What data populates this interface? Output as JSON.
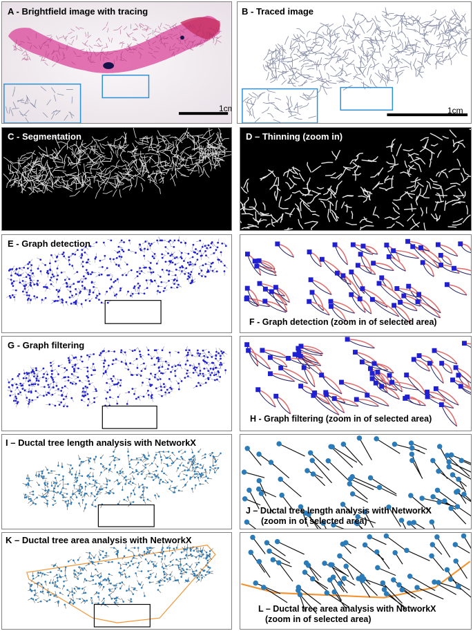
{
  "panels": {
    "a": {
      "label": "A - Brightfield image with tracing",
      "scale": "1cm"
    },
    "b": {
      "label": "B - Traced image",
      "scale": "1cm"
    },
    "c": {
      "label": "C - Segmentation"
    },
    "d": {
      "label": "D – Thinning (zoom in)"
    },
    "e": {
      "label": "E - Graph detection"
    },
    "f": {
      "label": "F - Graph detection (zoom in of selected area)"
    },
    "g": {
      "label": "G - Graph filtering"
    },
    "h": {
      "label": "H - Graph filtering (zoom in of selected area)"
    },
    "i": {
      "label": "I – Ductal tree length analysis with NetworkX"
    },
    "j": {
      "label_line1": "J – Ductal tree length analysis with NetworkX",
      "label_line2": "(zoom in of selected area)"
    },
    "k": {
      "label": "K – Ductal tree area analysis with NetworkX"
    },
    "l": {
      "label_line1": "L – Ductal tree area analysis with NetworkX",
      "label_line2": "(zoom in of selected area)"
    }
  },
  "colors": {
    "tissue": "#d9469a",
    "trace": "#8a90a8",
    "skeleton_white": "#dcdcdc",
    "node_blue": "#2020d0",
    "edge_red": "#cc3344",
    "edge_navy": "#1a1a60",
    "nx_node": "#2b7bb9",
    "hull_orange": "#f29433",
    "select_box": "#2b8fd6"
  }
}
